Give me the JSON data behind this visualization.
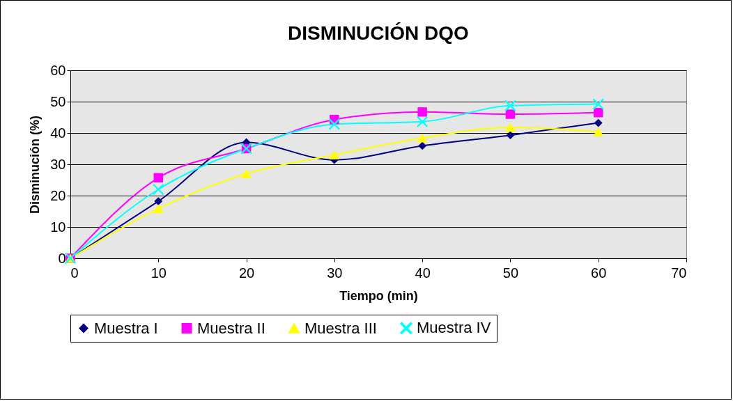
{
  "chart_data": {
    "type": "line",
    "title": "DISMINUCIÓN DQO",
    "xlabel": "Tiempo (min)",
    "ylabel": "Disminución (%)",
    "x": [
      0,
      10,
      20,
      30,
      40,
      50,
      60
    ],
    "series": [
      {
        "name": "Muestra I",
        "color": "#000080",
        "marker": "diamond",
        "values": [
          0,
          18.2,
          37,
          31.4,
          35.9,
          39.3,
          43.2
        ]
      },
      {
        "name": "Muestra II",
        "color": "#ff00ff",
        "marker": "square",
        "values": [
          0,
          25.7,
          35,
          44.3,
          46.7,
          46,
          46.5
        ]
      },
      {
        "name": "Muestra III",
        "color": "#ffff00",
        "marker": "triangle",
        "values": [
          0,
          15.8,
          27,
          33,
          38.4,
          41.8,
          40.4
        ]
      },
      {
        "name": "Muestra IV",
        "color": "#00ffff",
        "marker": "cross",
        "values": [
          0,
          22,
          35,
          42.8,
          43.6,
          48.7,
          49.2
        ]
      }
    ],
    "xlim": [
      0,
      70
    ],
    "xticks": [
      0,
      10,
      20,
      30,
      40,
      50,
      60,
      70
    ],
    "ylim": [
      0,
      60
    ],
    "yticks": [
      0,
      10,
      20,
      30,
      40,
      50,
      60
    ],
    "grid": "y",
    "legend": "bottom",
    "line_style": "solid"
  }
}
